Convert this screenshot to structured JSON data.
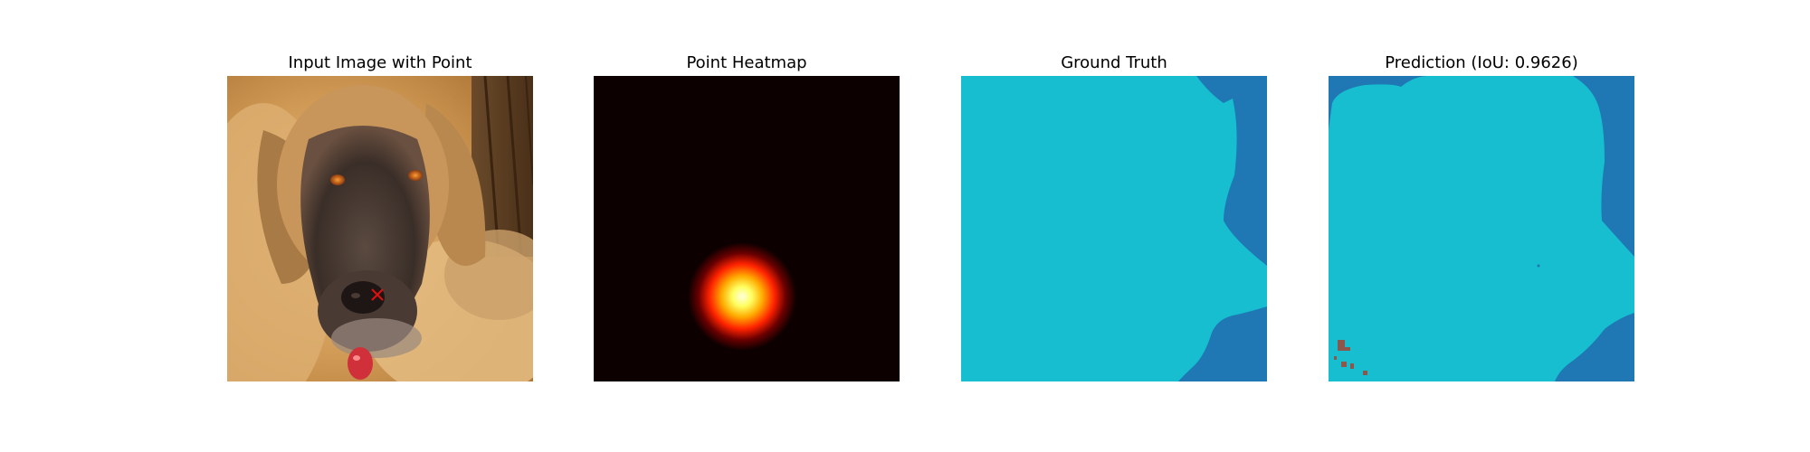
{
  "figure": {
    "panels": [
      {
        "title": "Input Image with Point"
      },
      {
        "title": "Point Heatmap"
      },
      {
        "title": "Ground Truth"
      },
      {
        "title": "Prediction (IoU: 0.9626)"
      }
    ],
    "mask_colors": {
      "foreground": "#17becf",
      "background": "#1f77b4",
      "noise": "#8c564b"
    },
    "heatmap_colors": {
      "base": "#0c0000",
      "peak": "#ffffe0",
      "mid": "#ff2200"
    },
    "point_marker_color": "#e01010",
    "iou": 0.9626
  }
}
